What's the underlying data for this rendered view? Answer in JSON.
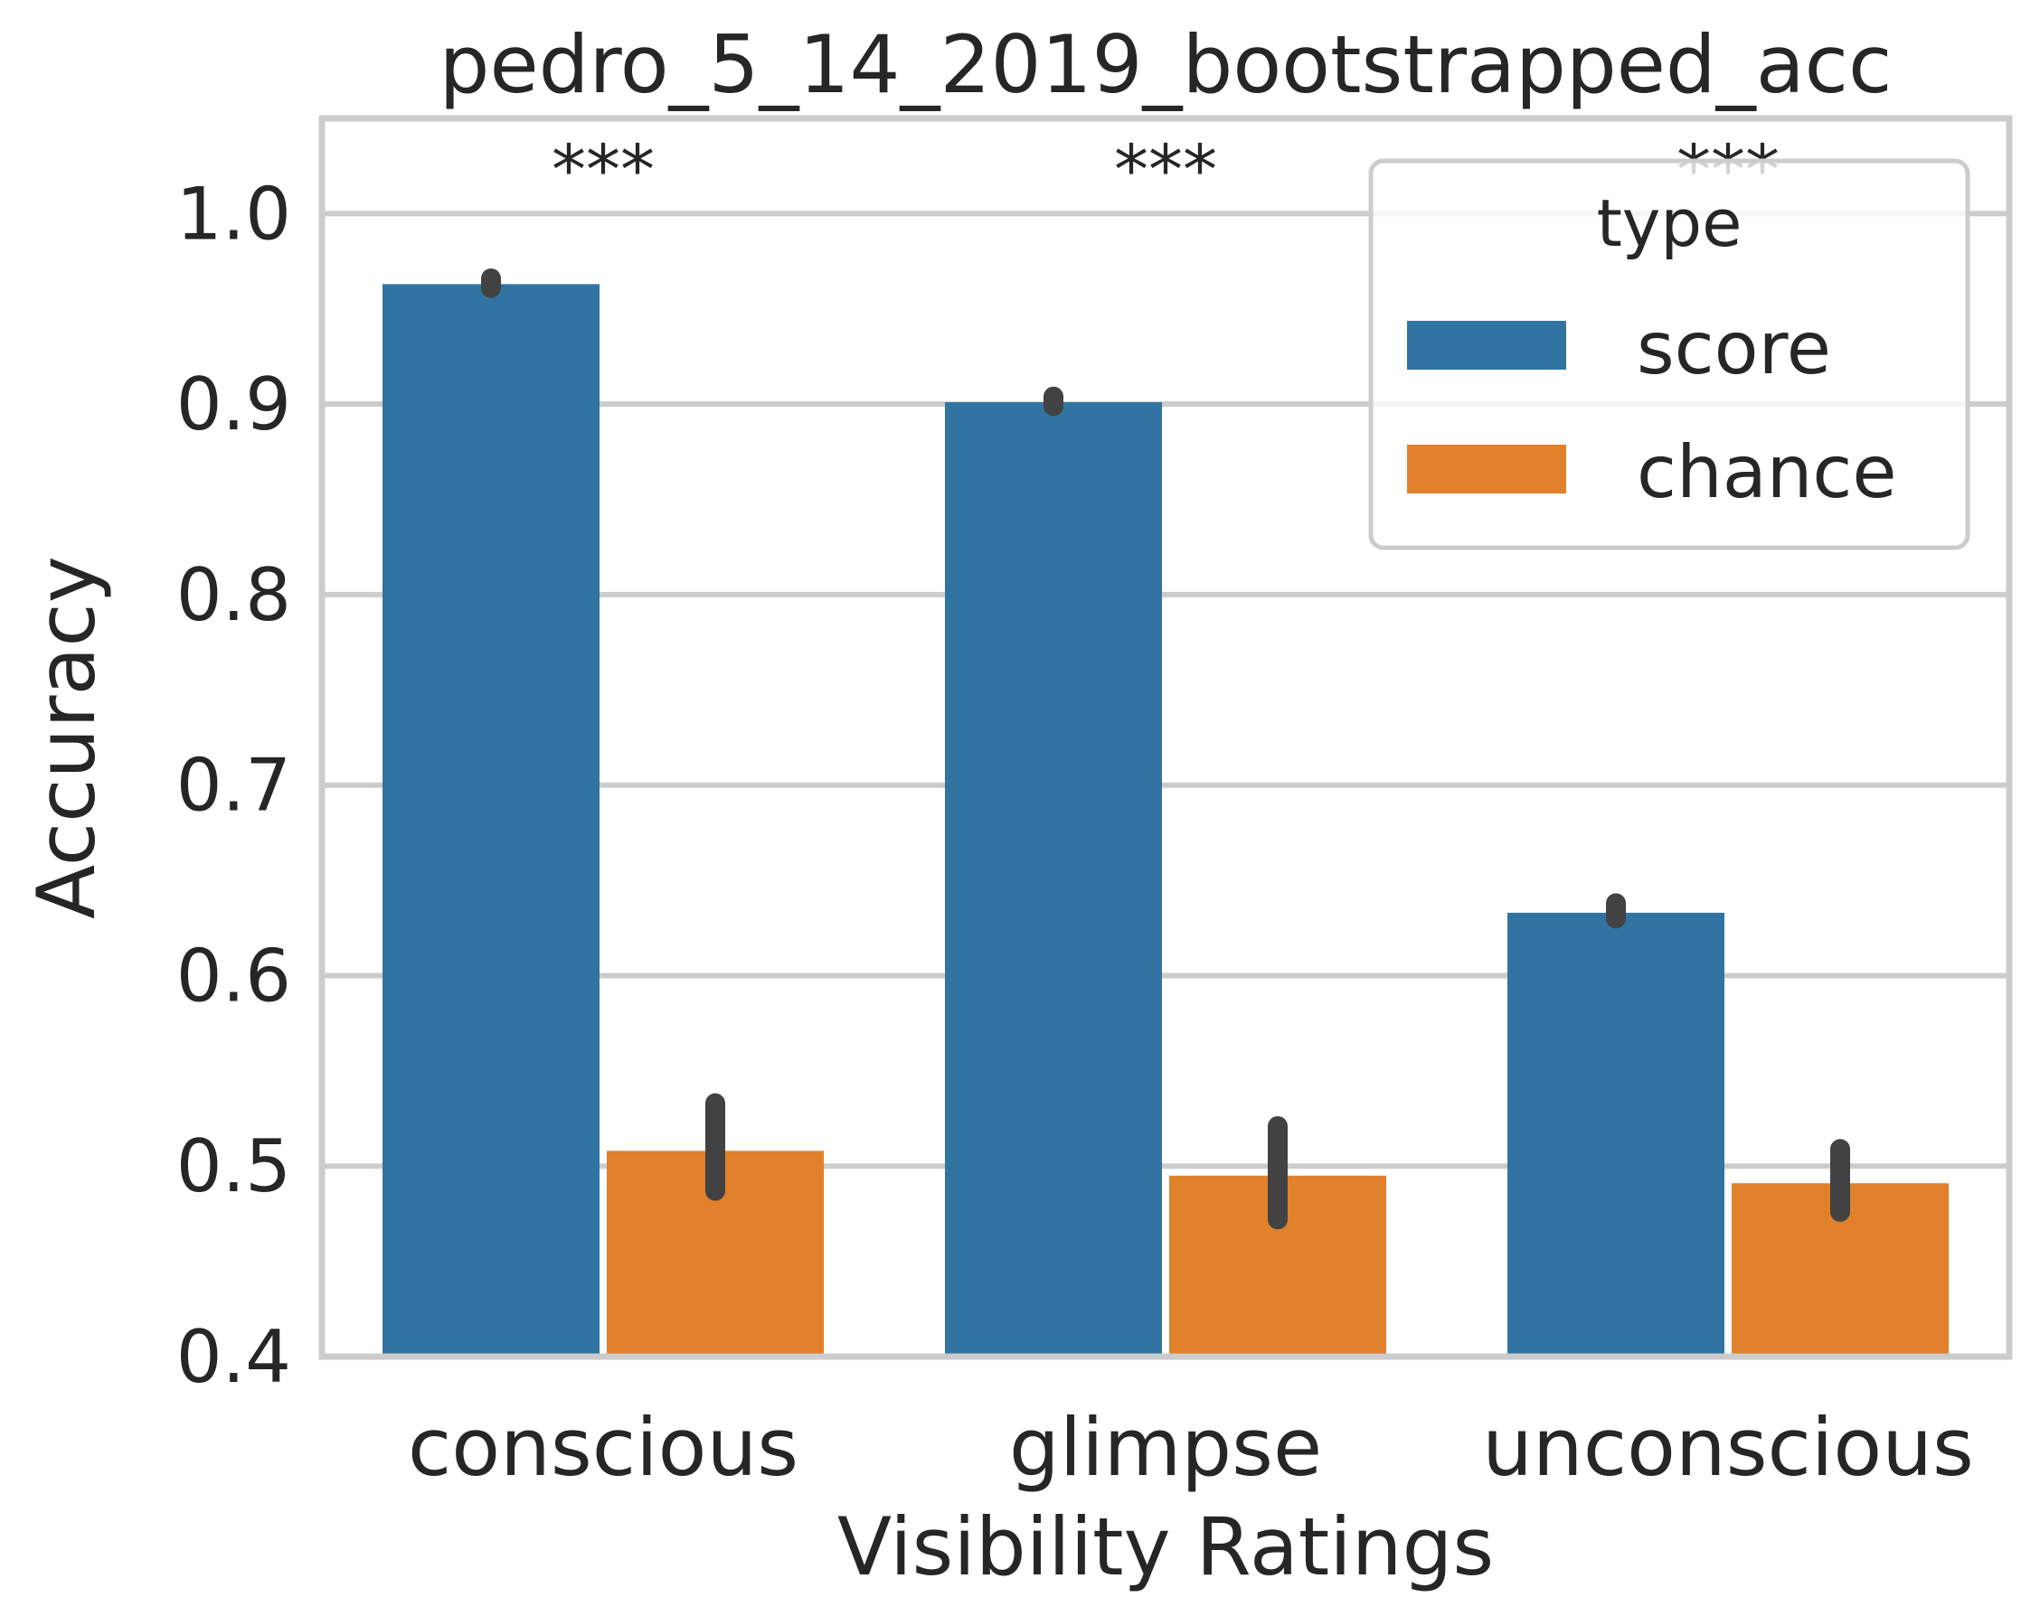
{
  "chart_data": {
    "type": "bar",
    "title": "pedro_5_14_2019_bootstrapped_acc",
    "xlabel": "Visibility Ratings",
    "ylabel": "Accuracy",
    "categories": [
      "conscious",
      "glimpse",
      "unconscious"
    ],
    "ylim": [
      0.4,
      1.05
    ],
    "yticks": [
      0.4,
      0.5,
      0.6,
      0.7,
      0.8,
      0.9,
      1.0
    ],
    "ytick_labels": [
      "0.4",
      "0.5",
      "0.6",
      "0.7",
      "0.8",
      "0.9",
      "1.0"
    ],
    "grid": true,
    "legend": {
      "title": "type",
      "position": "top-right"
    },
    "series": [
      {
        "name": "score",
        "color": "#3274a1",
        "values": [
          0.963,
          0.901,
          0.633
        ],
        "ci": [
          [
            0.961,
            0.966
          ],
          [
            0.899,
            0.904
          ],
          [
            0.63,
            0.638
          ]
        ]
      },
      {
        "name": "chance",
        "color": "#e1812c",
        "values": [
          0.508,
          0.495,
          0.491
        ],
        "ci": [
          [
            0.487,
            0.533
          ],
          [
            0.472,
            0.521
          ],
          [
            0.476,
            0.509
          ]
        ]
      }
    ],
    "annotations": [
      "***",
      "***",
      "***"
    ]
  }
}
